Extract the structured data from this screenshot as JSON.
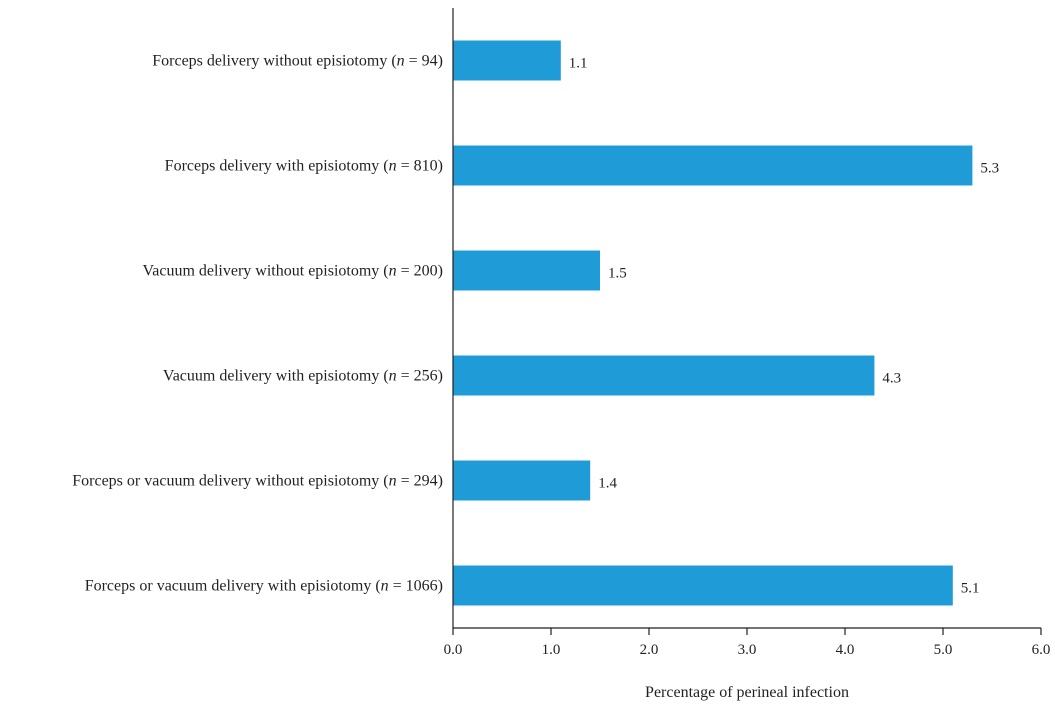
{
  "chart_data": {
    "type": "bar",
    "orientation": "horizontal",
    "categories": [
      {
        "text": "Forceps delivery without episiotomy (",
        "n_symbol": "n",
        "n_text": " = 94)"
      },
      {
        "text": "Forceps delivery with episiotomy (",
        "n_symbol": "n",
        "n_text": " = 810)"
      },
      {
        "text": "Vacuum delivery without episiotomy (",
        "n_symbol": "n",
        "n_text": " = 200)"
      },
      {
        "text": "Vacuum delivery with episiotomy (",
        "n_symbol": "n",
        "n_text": " = 256)"
      },
      {
        "text": "Forceps or vacuum delivery without episiotomy (",
        "n_symbol": "n",
        "n_text": " = 294)"
      },
      {
        "text": "Forceps or vacuum delivery with episiotomy (",
        "n_symbol": "n",
        "n_text": " = 1066)"
      }
    ],
    "values": [
      1.1,
      5.3,
      1.5,
      4.3,
      1.4,
      5.1
    ],
    "value_labels": [
      "1.1",
      "5.3",
      "1.5",
      "4.3",
      "1.4",
      "5.1"
    ],
    "xlabel": "Percentage of perineal infection",
    "xlim": [
      0,
      6
    ],
    "xticks": [
      "0.0",
      "1.0",
      "2.0",
      "3.0",
      "4.0",
      "5.0",
      "6.0"
    ],
    "grid": false,
    "bar_color": "#1f9cd8"
  }
}
